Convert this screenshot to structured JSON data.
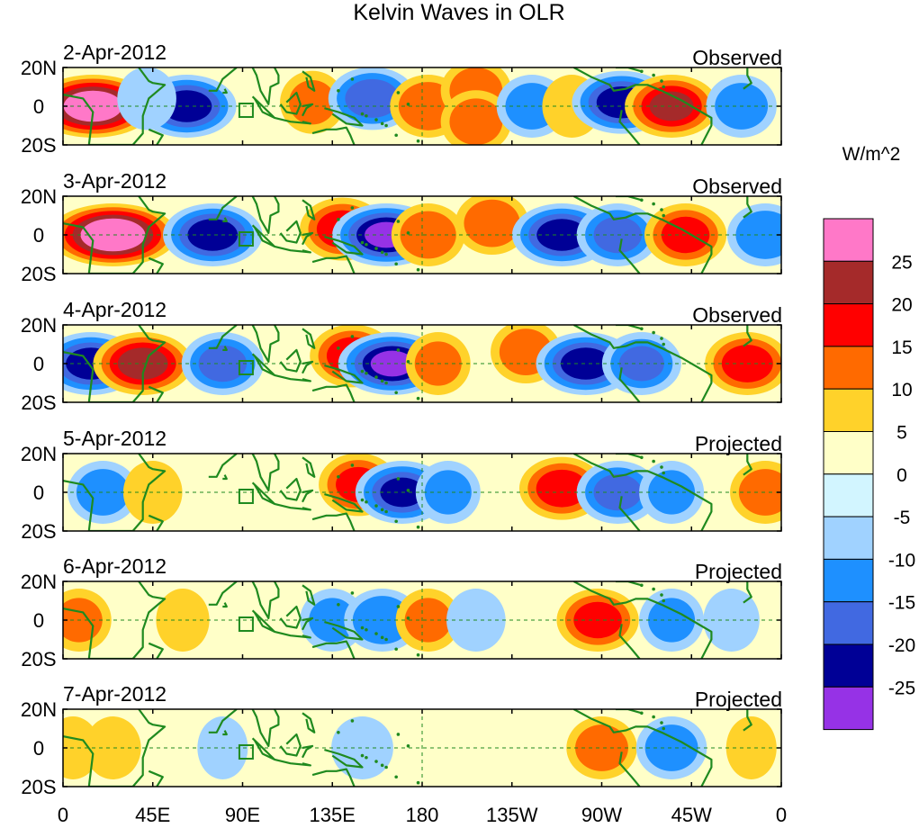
{
  "title": "Kelvin Waves in OLR",
  "units_label": "W/m^2",
  "lat_labels": [
    "20N",
    "0",
    "20S"
  ],
  "lon_labels": [
    "0",
    "45E",
    "90E",
    "135E",
    "180",
    "135W",
    "90W",
    "45W",
    "0"
  ],
  "colors": {
    "ocean_land_outline": "#1f8a1f",
    "equator_line": "#1f8a1f",
    "frame": "#000000",
    "scale": [
      "#ff78c8",
      "#a52a2a",
      "#ff0000",
      "#ff6a00",
      "#ffd22a",
      "#ffffc8",
      "#d2f5ff",
      "#a0d2ff",
      "#1e90ff",
      "#4169e1",
      "#000096",
      "#9632e6"
    ]
  },
  "colorbar": {
    "tick_labels": [
      "25",
      "20",
      "15",
      "10",
      "5",
      "0",
      "-5",
      "-10",
      "-15",
      "-20",
      "-25"
    ]
  },
  "panels": [
    {
      "date": "2-Apr-2012",
      "status": "Observed",
      "features": [
        {
          "lon": 15,
          "lat": 0,
          "value": 30
        },
        {
          "lon": 62,
          "lat": 0,
          "value": -22
        },
        {
          "lon": 42,
          "lat": 4,
          "value": -8
        },
        {
          "lon": 125,
          "lat": 2,
          "value": 10
        },
        {
          "lon": 155,
          "lat": 4,
          "value": -18
        },
        {
          "lon": 183,
          "lat": 0,
          "value": 14
        },
        {
          "lon": 207,
          "lat": 8,
          "value": 12
        },
        {
          "lon": 207,
          "lat": -8,
          "value": 12
        },
        {
          "lon": 235,
          "lat": 0,
          "value": -12
        },
        {
          "lon": 255,
          "lat": 0,
          "value": 8
        },
        {
          "lon": 280,
          "lat": 2,
          "value": -22
        },
        {
          "lon": 305,
          "lat": 0,
          "value": 20
        },
        {
          "lon": 340,
          "lat": 0,
          "value": -12
        }
      ]
    },
    {
      "date": "3-Apr-2012",
      "status": "Observed",
      "features": [
        {
          "lon": 25,
          "lat": 0,
          "value": 32
        },
        {
          "lon": 75,
          "lat": 0,
          "value": -22
        },
        {
          "lon": 140,
          "lat": 3,
          "value": 17
        },
        {
          "lon": 162,
          "lat": 0,
          "value": -25
        },
        {
          "lon": 183,
          "lat": 0,
          "value": 13
        },
        {
          "lon": 215,
          "lat": 6,
          "value": 13
        },
        {
          "lon": 250,
          "lat": 0,
          "value": -22
        },
        {
          "lon": 278,
          "lat": 0,
          "value": -16
        },
        {
          "lon": 312,
          "lat": 0,
          "value": 16
        },
        {
          "lon": 352,
          "lat": 0,
          "value": -14
        }
      ]
    },
    {
      "date": "4-Apr-2012",
      "status": "Observed",
      "features": [
        {
          "lon": 14,
          "lat": 0,
          "value": -22
        },
        {
          "lon": 40,
          "lat": 0,
          "value": 22
        },
        {
          "lon": 80,
          "lat": 0,
          "value": -16
        },
        {
          "lon": 145,
          "lat": 4,
          "value": 17
        },
        {
          "lon": 165,
          "lat": 0,
          "value": -25
        },
        {
          "lon": 188,
          "lat": 0,
          "value": 10
        },
        {
          "lon": 232,
          "lat": 6,
          "value": 12
        },
        {
          "lon": 262,
          "lat": 0,
          "value": -22
        },
        {
          "lon": 290,
          "lat": 0,
          "value": -15
        },
        {
          "lon": 343,
          "lat": 0,
          "value": 17
        }
      ]
    },
    {
      "date": "5-Apr-2012",
      "status": "Projected",
      "features": [
        {
          "lon": 20,
          "lat": 0,
          "value": -12
        },
        {
          "lon": 45,
          "lat": 0,
          "value": 8
        },
        {
          "lon": 148,
          "lat": 4,
          "value": 15
        },
        {
          "lon": 170,
          "lat": 0,
          "value": -20
        },
        {
          "lon": 193,
          "lat": 0,
          "value": -10
        },
        {
          "lon": 250,
          "lat": 2,
          "value": 17
        },
        {
          "lon": 278,
          "lat": 0,
          "value": -16
        },
        {
          "lon": 305,
          "lat": 0,
          "value": -10
        },
        {
          "lon": 352,
          "lat": 0,
          "value": 12
        }
      ]
    },
    {
      "date": "6-Apr-2012",
      "status": "Projected",
      "features": [
        {
          "lon": 8,
          "lat": 0,
          "value": 10
        },
        {
          "lon": 60,
          "lat": 0,
          "value": 6
        },
        {
          "lon": 135,
          "lat": 0,
          "value": -10
        },
        {
          "lon": 160,
          "lat": 0,
          "value": -14
        },
        {
          "lon": 183,
          "lat": 0,
          "value": 10
        },
        {
          "lon": 207,
          "lat": 0,
          "value": -8
        },
        {
          "lon": 268,
          "lat": 0,
          "value": 16
        },
        {
          "lon": 305,
          "lat": 0,
          "value": -10
        },
        {
          "lon": 335,
          "lat": 0,
          "value": -7
        }
      ]
    },
    {
      "date": "7-Apr-2012",
      "status": "Projected",
      "features": [
        {
          "lon": 5,
          "lat": 0,
          "value": 6
        },
        {
          "lon": 25,
          "lat": 0,
          "value": 7
        },
        {
          "lon": 80,
          "lat": 0,
          "value": -5
        },
        {
          "lon": 150,
          "lat": 0,
          "value": -9
        },
        {
          "lon": 215,
          "lat": 0,
          "value": 4
        },
        {
          "lon": 270,
          "lat": 0,
          "value": 12
        },
        {
          "lon": 305,
          "lat": 0,
          "value": -12
        },
        {
          "lon": 345,
          "lat": 0,
          "value": 5
        }
      ]
    }
  ]
}
